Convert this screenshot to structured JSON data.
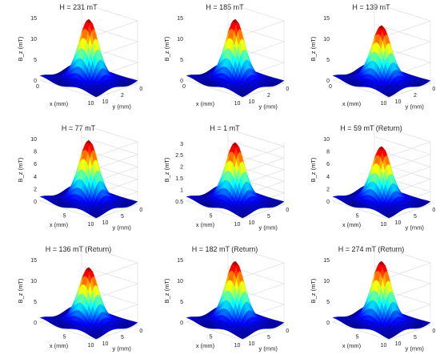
{
  "chart_data": [
    {
      "type": "surface",
      "title": "H = 231 mT",
      "xlabel": "x (mm)",
      "ylabel": "y (mm)",
      "zlabel": "B_z (mT)",
      "zlim": [
        0,
        15
      ],
      "zticks": [
        "0",
        "5",
        "10",
        "15"
      ],
      "xticks": [
        "0",
        "10"
      ],
      "yticks": [
        "0",
        "2",
        "10"
      ],
      "peak": 15,
      "grid": true
    },
    {
      "type": "surface",
      "title": "H = 185 mT",
      "xlabel": "x (mm)",
      "ylabel": "y (mm)",
      "zlabel": "B_z (mT)",
      "zlim": [
        0,
        15
      ],
      "zticks": [
        "0",
        "5",
        "10",
        "15"
      ],
      "xticks": [
        "0",
        "10"
      ],
      "yticks": [
        "0",
        "2",
        "10"
      ],
      "peak": 15,
      "grid": true
    },
    {
      "type": "surface",
      "title": "H = 139 mT",
      "xlabel": "x (mm)",
      "ylabel": "y (mm)",
      "zlabel": "B_z (mT)",
      "zlim": [
        0,
        15
      ],
      "zticks": [
        "0",
        "5",
        "10",
        "15"
      ],
      "xticks": [
        "0",
        "10"
      ],
      "yticks": [
        "0",
        "2",
        "10"
      ],
      "peak": 13.5,
      "grid": true
    },
    {
      "type": "surface",
      "title": "H = 77 mT",
      "xlabel": "x (mm)",
      "ylabel": "y (mm)",
      "zlabel": "B_z (mT)",
      "zlim": [
        0,
        10
      ],
      "zticks": [
        "0",
        "2",
        "4",
        "6",
        "8",
        "10"
      ],
      "xticks": [
        "5",
        "10"
      ],
      "yticks": [
        "0",
        "5",
        "10"
      ],
      "peak": 10,
      "grid": true
    },
    {
      "type": "surface",
      "title": "H = 1 mT",
      "xlabel": "x (mm)",
      "ylabel": "y (mm)",
      "zlabel": "B_z (mT)",
      "zlim": [
        0.5,
        3.2
      ],
      "zticks": [
        "0.5",
        "1",
        "1.5",
        "2",
        "2.5",
        "3"
      ],
      "xticks": [
        "5",
        "10"
      ],
      "yticks": [
        "0",
        "5",
        "10"
      ],
      "peak": 3.1,
      "grid": true
    },
    {
      "type": "surface",
      "title": "H = 59 mT (Return)",
      "xlabel": "x (mm)",
      "ylabel": "y (mm)",
      "zlabel": "B_z (mT)",
      "zlim": [
        0,
        10
      ],
      "zticks": [
        "0",
        "2",
        "4",
        "6",
        "8",
        "10"
      ],
      "xticks": [
        "5",
        "10"
      ],
      "yticks": [
        "0",
        "5",
        "10"
      ],
      "peak": 9,
      "grid": true
    },
    {
      "type": "surface",
      "title": "H = 136 mT (Return)",
      "xlabel": "x (mm)",
      "ylabel": "y (mm)",
      "zlabel": "B_z (mT)",
      "zlim": [
        0,
        15
      ],
      "zticks": [
        "0",
        "5",
        "10",
        "15"
      ],
      "xticks": [
        "5",
        "10"
      ],
      "yticks": [
        "0",
        "5",
        "10"
      ],
      "peak": 13.5,
      "grid": true
    },
    {
      "type": "surface",
      "title": "H = 182 mT (Return)",
      "xlabel": "x (mm)",
      "ylabel": "y (mm)",
      "zlabel": "B_z (mT)",
      "zlim": [
        0,
        15
      ],
      "zticks": [
        "0",
        "5",
        "10",
        "15"
      ],
      "xticks": [
        "5",
        "10"
      ],
      "yticks": [
        "0",
        "5",
        "10"
      ],
      "peak": 15,
      "grid": true
    },
    {
      "type": "surface",
      "title": "H = 274 mT (Return)",
      "xlabel": "x (mm)",
      "ylabel": "y (mm)",
      "zlabel": "B_z (mT)",
      "zlim": [
        0,
        15
      ],
      "zticks": [
        "0",
        "5",
        "10",
        "15"
      ],
      "xticks": [
        "5",
        "10"
      ],
      "yticks": [
        "0",
        "5",
        "10"
      ],
      "peak": 15,
      "grid": true
    }
  ],
  "colors": {
    "surface_low": "#0a1fa8",
    "surface_mid": "#1ec8ff",
    "surface_high": "#ffe000",
    "surface_top": "#9b0000",
    "grid": "#d8d8d8",
    "axis": "#555555"
  }
}
